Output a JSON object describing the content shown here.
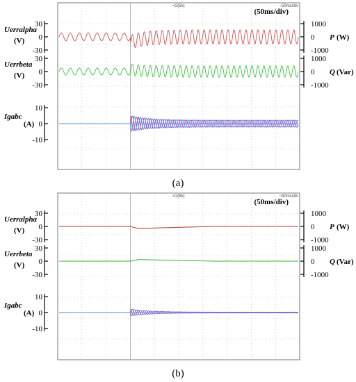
{
  "chart_data": [
    {
      "type": "line",
      "caption": "(a)",
      "timebase": "(50ms/div)",
      "marker_text": "<2(5k)",
      "corner_text": "~50ms/div",
      "grid": true,
      "panels": [
        {
          "name_left": "Uerralpha",
          "unit_left": "(V)",
          "ticks_left": [
            "30",
            "0",
            "-30"
          ],
          "ylim_left": [
            -30,
            30
          ],
          "name_right": "P",
          "unit_right": "(W)",
          "ticks_right": [
            "1000",
            "0",
            "-1000"
          ],
          "ylim_right": [
            -1000,
            1000
          ],
          "series": [
            {
              "color": "#d0504c",
              "amp_before": 9,
              "amp_after": 16,
              "cycles_before": 8,
              "cycles_after": 28,
              "transient": -12
            }
          ]
        },
        {
          "name_left": "Uerrbeta",
          "unit_left": "(V)",
          "ticks_left": [
            "30",
            "0",
            "-30"
          ],
          "ylim_left": [
            -30,
            30
          ],
          "name_right": "Q",
          "unit_right": "(Var)",
          "ticks_right": [
            "1000",
            "0",
            "-1000"
          ],
          "ylim_right": [
            -1000,
            1000
          ],
          "series": [
            {
              "color": "#3cc03c",
              "amp_before": 8,
              "amp_after": 13,
              "cycles_before": 8,
              "cycles_after": 28,
              "transient": 4
            }
          ]
        },
        {
          "name_left": "Igabc",
          "unit_left": "(A)",
          "ticks_left": [
            "10",
            "0",
            "-10"
          ],
          "ylim_left": [
            -10,
            10
          ],
          "series": [
            {
              "color": "#5050d0",
              "amp_before": 0,
              "amp_after": 2.2,
              "peak": 5,
              "cycles_before": 8,
              "cycles_after": 28
            },
            {
              "color": "#c050c0",
              "amp_before": 0,
              "amp_after": 2.2,
              "peak": 5,
              "cycles_before": 8,
              "cycles_after": 28
            },
            {
              "color": "#4a90d8",
              "amp_before": 0,
              "amp_after": 2.2,
              "peak": 5,
              "cycles_before": 8,
              "cycles_after": 28
            }
          ]
        }
      ]
    },
    {
      "type": "line",
      "caption": "(b)",
      "timebase": "(50ms/div)",
      "marker_text": "<2(5k)",
      "corner_text": "~50ms/div",
      "grid": true,
      "panels": [
        {
          "name_left": "Uerralpha",
          "unit_left": "(V)",
          "ticks_left": [
            "30",
            "0",
            "-30"
          ],
          "ylim_left": [
            -30,
            30
          ],
          "name_right": "P",
          "unit_right": "(W)",
          "ticks_right": [
            "1000",
            "0",
            "-1000"
          ],
          "ylim_right": [
            -1000,
            1000
          ],
          "series": [
            {
              "color": "#b04030",
              "amp_before": 0.5,
              "amp_after": 0.5,
              "transient": -5,
              "settle": 0.35
            }
          ]
        },
        {
          "name_left": "Uerrbeta",
          "unit_left": "(V)",
          "ticks_left": [
            "30",
            "0",
            "-30"
          ],
          "ylim_left": [
            -30,
            30
          ],
          "name_right": "Q",
          "unit_right": "(Var)",
          "ticks_right": [
            "1000",
            "0",
            "-1000"
          ],
          "ylim_right": [
            -1000,
            1000
          ],
          "series": [
            {
              "color": "#3cb03c",
              "amp_before": 0.5,
              "amp_after": 0.5,
              "transient": 4,
              "settle": 0.35
            }
          ]
        },
        {
          "name_left": "Igabc",
          "unit_left": "(A)",
          "ticks_left": [
            "10",
            "0",
            "-10"
          ],
          "ylim_left": [
            -10,
            10
          ],
          "series": [
            {
              "color": "#5050d0",
              "amp_before": 0,
              "amp_after": 0.3,
              "peak": 2.2,
              "cycles_before": 8,
              "cycles_after": 28
            },
            {
              "color": "#c050c0",
              "amp_before": 0,
              "amp_after": 0.3,
              "peak": 2.2,
              "cycles_before": 8,
              "cycles_after": 28
            },
            {
              "color": "#4a90d8",
              "amp_before": 0,
              "amp_after": 0.3,
              "peak": 2.2,
              "cycles_before": 8,
              "cycles_after": 28
            }
          ]
        }
      ]
    }
  ]
}
